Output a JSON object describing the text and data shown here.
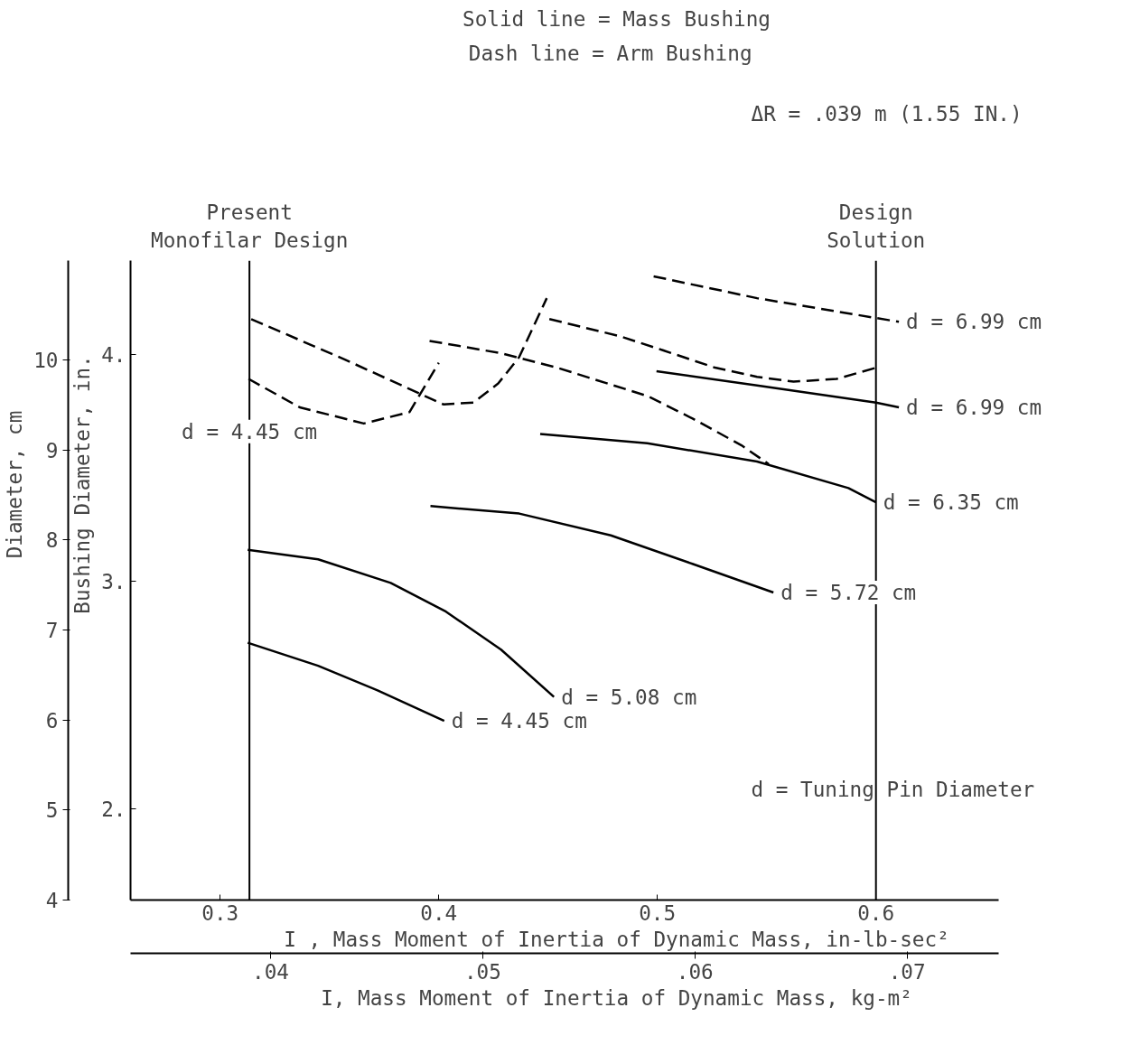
{
  "chart_data": {
    "type": "line",
    "title": "Solid line = Mass Bushing",
    "subtitle": "Dash  line = Arm Bushing",
    "xlabel": "I , Mass Moment of Inertia of Dynamic Mass, in-lb-sec²",
    "ylabel": "Bushing Diameter, in.",
    "y2label": "Diameter, cm",
    "x2label": "I, Mass Moment of Inertia of Dynamic Mass, kg-m²",
    "xlim": [
      0.259,
      0.656
    ],
    "xticks": [
      {
        "value": 0.3,
        "label": "0.3"
      },
      {
        "value": 0.4,
        "label": "0.4"
      },
      {
        "value": 0.5,
        "label": "0.5"
      },
      {
        "value": 0.6,
        "label": "0.6"
      }
    ],
    "ylim": [
      1.6,
      4.41
    ],
    "yticks": [
      {
        "value": 2,
        "label": "2."
      },
      {
        "value": 3,
        "label": "3."
      },
      {
        "value": 4,
        "label": "4."
      }
    ],
    "y2lim": [
      4,
      11.1
    ],
    "y2ticks": [
      4,
      5,
      6,
      7,
      8,
      9,
      10
    ],
    "x2lim": [
      0.0334,
      0.0743
    ],
    "x2ticks": [
      {
        "value": 0.04,
        "label": ".04"
      },
      {
        "value": 0.05,
        "label": ".05"
      },
      {
        "value": 0.06,
        "label": ".06"
      },
      {
        "value": 0.07,
        "label": ".07"
      }
    ],
    "grid": false,
    "marker": "none",
    "series": [
      {
        "color": "#000000",
        "line_style": "solid",
        "x": [
          0.3126,
          0.3448,
          0.372,
          0.4025
        ],
        "values": [
          2.731,
          2.63,
          2.522,
          2.388
        ]
      },
      {
        "color": "#000000",
        "line_style": "solid",
        "x": [
          0.3126,
          0.3448,
          0.378,
          0.4033,
          0.4285,
          0.4527
        ],
        "values": [
          3.14,
          3.098,
          2.994,
          2.868,
          2.701,
          2.493
        ]
      },
      {
        "color": "#000000",
        "line_style": "solid",
        "x": [
          0.3962,
          0.4368,
          0.4787,
          0.5163,
          0.5531
        ],
        "values": [
          3.332,
          3.299,
          3.203,
          3.077,
          2.952
        ]
      },
      {
        "color": "#000000",
        "line_style": "solid",
        "x": [
          0.4464,
          0.4954,
          0.5456,
          0.5874,
          0.6
        ],
        "values": [
          3.649,
          3.608,
          3.528,
          3.411,
          3.349
        ]
      },
      {
        "color": "#000000",
        "line_style": "solid",
        "x": [
          0.4996,
          0.5456,
          0.6,
          0.6105
        ],
        "values": [
          3.925,
          3.862,
          3.787,
          3.766
        ]
      },
      {
        "color": "#000000",
        "line_style": "dashed",
        "x": [
          0.3142,
          0.3573,
          0.4021,
          0.4159,
          0.4272,
          0.4368,
          0.4494
        ],
        "values": [
          4.154,
          3.975,
          3.779,
          3.787,
          3.871,
          3.987,
          4.246
        ]
      },
      {
        "color": "#000000",
        "line_style": "dashed",
        "x": [
          0.313,
          0.3364,
          0.3657,
          0.3866,
          0.4
        ],
        "values": [
          3.891,
          3.766,
          3.695,
          3.745,
          3.962
        ]
      },
      {
        "color": "#000000",
        "line_style": "dashed",
        "x": [
          0.3958,
          0.4285,
          0.4536,
          0.4954,
          0.5163,
          0.5385,
          0.551
        ],
        "values": [
          4.058,
          4.004,
          3.942,
          3.816,
          3.716,
          3.599,
          3.516
        ]
      },
      {
        "color": "#000000",
        "line_style": "dashed",
        "x": [
          0.4506,
          0.4828,
          0.5025,
          0.5259,
          0.5456,
          0.5623,
          0.582,
          0.6008
        ],
        "values": [
          4.154,
          4.079,
          4.017,
          3.942,
          3.9,
          3.879,
          3.891,
          3.942
        ]
      },
      {
        "color": "#000000",
        "line_style": "dashed",
        "x": [
          0.4983,
          0.5456,
          0.6105
        ],
        "values": [
          4.342,
          4.246,
          4.142
        ]
      }
    ],
    "ref_lines": [
      {
        "axis": "x",
        "value": 0.3134,
        "label": "Present\nMonofilar Design",
        "color": "#000000"
      },
      {
        "axis": "x",
        "value": 0.6,
        "label": "Design\nSolution",
        "color": "#000000"
      }
    ],
    "annotations": [
      "ΔR = .039 m  (1.55 IN.)",
      "d = Tuning Pin Diameter",
      {
        "text": "d = 6.99 cm",
        "x": 0.6105,
        "y": 4.142
      },
      {
        "text": "d = 6.99 cm",
        "x": 0.6105,
        "y": 3.766
      },
      {
        "text": "d = 6.35 cm",
        "x": 0.6,
        "y": 3.349
      },
      {
        "text": "d = 5.72 cm",
        "x": 0.5531,
        "y": 2.952
      },
      {
        "text": "d = 5.08 cm",
        "x": 0.4527,
        "y": 2.493
      },
      {
        "text": "d = 4.45 cm",
        "x": 0.4025,
        "y": 2.388
      },
      {
        "text": "d = 4.45 cm",
        "x": 0.3134,
        "y": 3.66
      }
    ]
  }
}
